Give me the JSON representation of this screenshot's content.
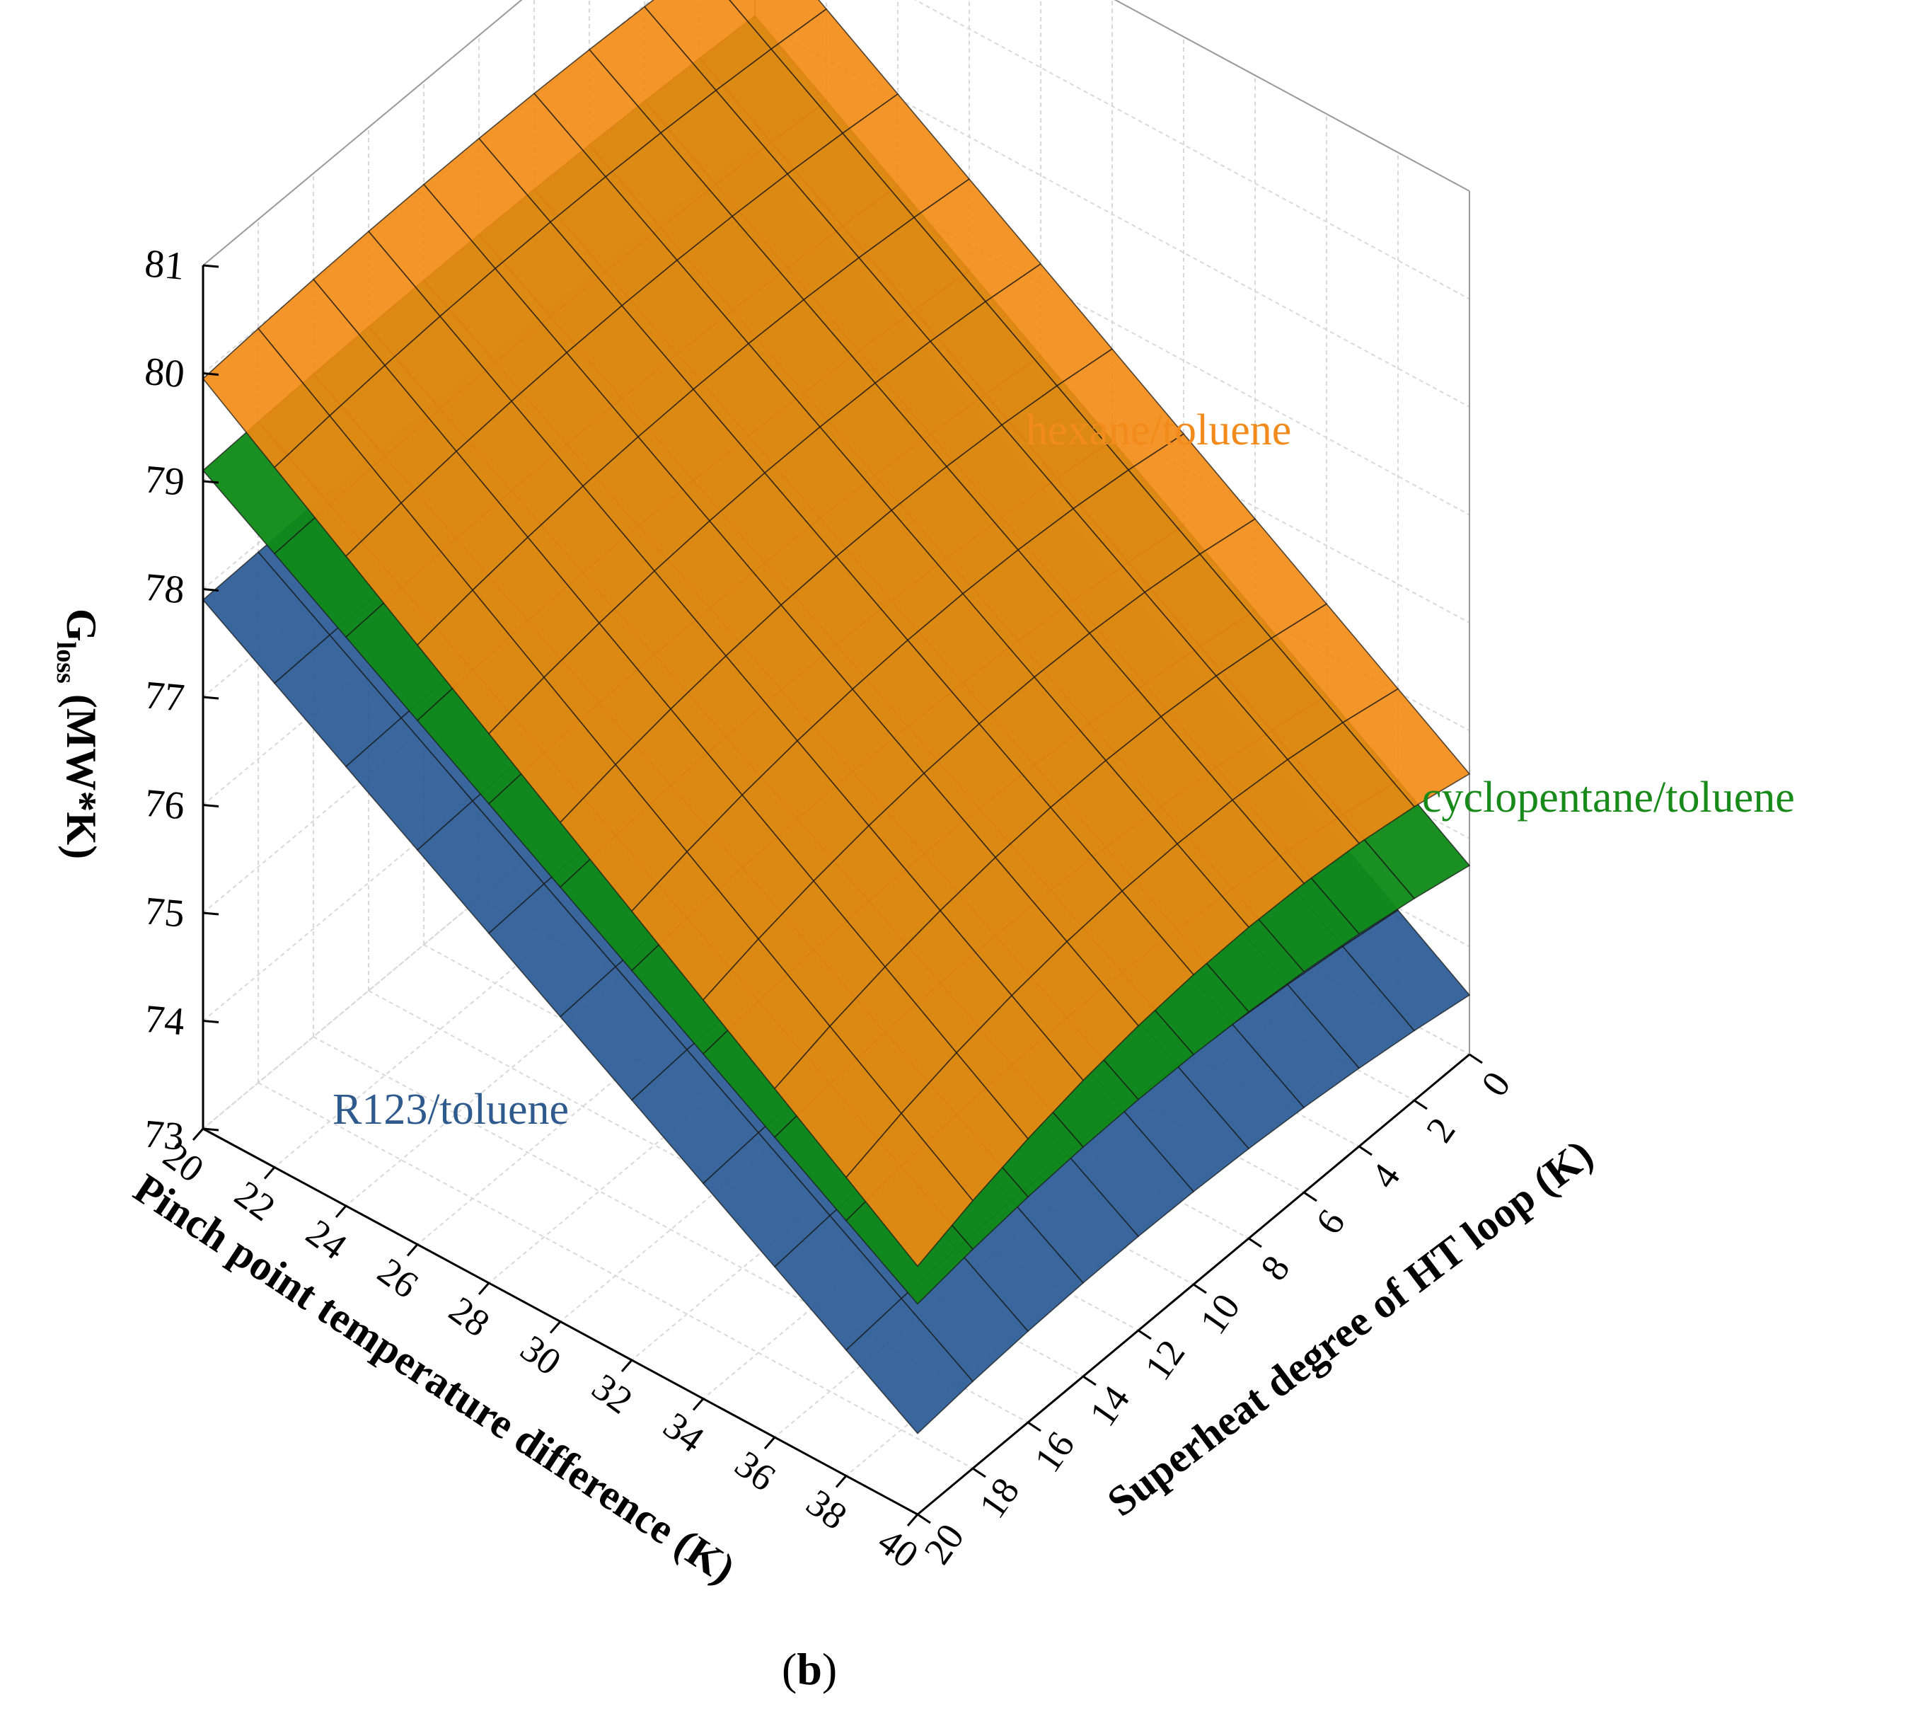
{
  "chart_data": {
    "type": "surface",
    "xlabel": "Pinch point temperature difference (K)",
    "ylabel": "Superheat degree of HT loop (K)",
    "zlabel_main": "G",
    "zlabel_sub": "loss",
    "zlabel_unit": " (MW*K)",
    "x_ticks": [
      "22",
      "24",
      "26",
      "28",
      "30",
      "32",
      "34",
      "36",
      "38",
      "40"
    ],
    "x_tick_overlap": "20",
    "y_ticks": [
      "0",
      "2",
      "4",
      "6",
      "8",
      "10",
      "12",
      "14",
      "16",
      "18",
      "20"
    ],
    "z_ticks": [
      "74",
      "75",
      "76",
      "77",
      "78",
      "79",
      "80",
      "81"
    ],
    "z_tick_overlap": "73",
    "xlim": [
      20,
      40
    ],
    "ylim": [
      0,
      20
    ],
    "zlim": [
      73,
      81
    ],
    "grid": true,
    "caption": "(b)",
    "series": [
      {
        "name": "R123/toluene",
        "color": "#2e5f98",
        "label_color": "#2e5a8e",
        "corners": {
          "x20_y0": 77.85,
          "x40_y0": 73.55,
          "x20_y20": 77.9,
          "x40_y20": 73.75
        },
        "curvature_y": 0.15
      },
      {
        "name": "cyclopentane/toluene",
        "color": "#0f8a16",
        "label_color": "#178a1a",
        "corners": {
          "x20_y0": 79.05,
          "x40_y0": 74.75,
          "x20_y20": 79.1,
          "x40_y20": 74.95
        },
        "curvature_y": 0.2
      },
      {
        "name": "hexane/toluene",
        "color": "#f28a12",
        "label_color": "#f28a1c",
        "corners": {
          "x20_y0": 79.9,
          "x40_y0": 75.6,
          "x20_y20": 79.95,
          "x40_y20": 75.3
        },
        "curvature_y": 0.3
      }
    ]
  }
}
